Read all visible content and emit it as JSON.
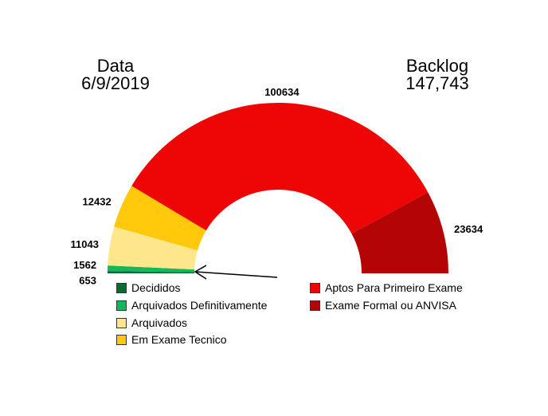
{
  "header": {
    "date_label": "Data",
    "date_value": "6/9/2019",
    "backlog_label": "Backlog",
    "backlog_value": "147,743"
  },
  "chart_data": {
    "type": "pie",
    "variant": "half-donut",
    "categories": [
      "Decididos",
      "Arquivados Definitivamente",
      "Arquivados",
      "Em Exame Tecnico",
      "Aptos Para Primeiro Exame",
      "Exame Formal ou ANVISA"
    ],
    "values": [
      653,
      1562,
      11043,
      12432,
      100634,
      23634
    ],
    "data_labels": [
      "653",
      "1562",
      "11043",
      "12432",
      "100634",
      "23634"
    ],
    "colors": [
      "#0a6b33",
      "#14b85a",
      "#fde68c",
      "#ffc80a",
      "#ee0505",
      "#b30505"
    ],
    "legend_placement": "bottom",
    "annotation": "arrow pointing to Decididos / Arquivados Definitivamente segment"
  }
}
